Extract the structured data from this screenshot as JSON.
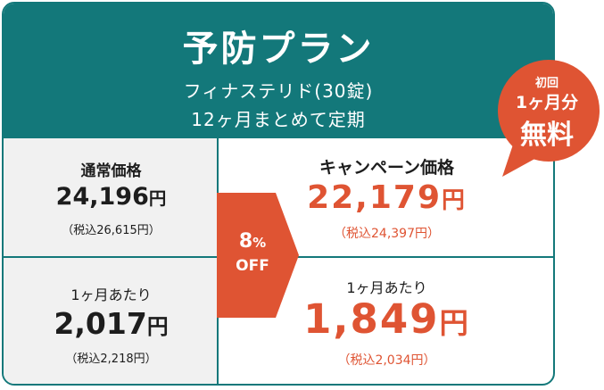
{
  "plan": {
    "title": "予防プラン",
    "subtitle_line1": "フィナステリド(30錠)",
    "subtitle_line2": "12ヶ月まとめて定期"
  },
  "regular": {
    "label": "通常価格",
    "price": "24,196",
    "yen": "円",
    "tax_included": "（税込26,615円）",
    "per_month_label": "1ヶ月あたり",
    "per_month_price": "2,017",
    "per_month_tax": "（税込2,218円）"
  },
  "campaign": {
    "label": "キャンペーン価格",
    "price": "22,179",
    "yen": "円",
    "tax_included": "（税込24,397円）",
    "per_month_label": "1ヶ月あたり",
    "per_month_price": "1,849",
    "per_month_tax": "（税込2,034円）"
  },
  "discount": {
    "value": "8",
    "unit": "%",
    "label": "OFF"
  },
  "badge": {
    "line1": "初回",
    "line2": "1ヶ月分",
    "line3": "無料"
  },
  "colors": {
    "teal": "#13787a",
    "orange": "#df5433",
    "gray_bg": "#f1f1f1"
  }
}
